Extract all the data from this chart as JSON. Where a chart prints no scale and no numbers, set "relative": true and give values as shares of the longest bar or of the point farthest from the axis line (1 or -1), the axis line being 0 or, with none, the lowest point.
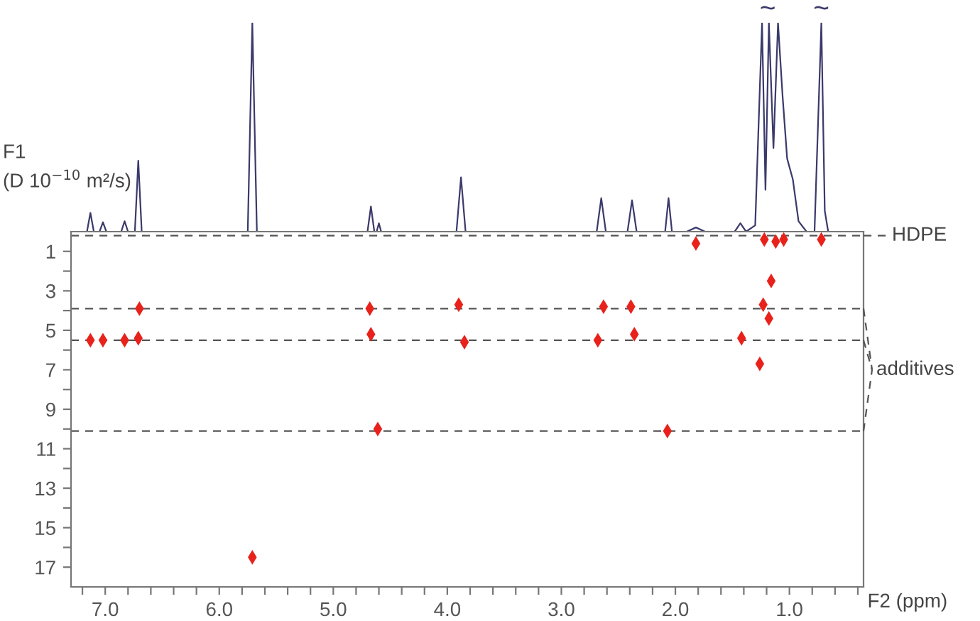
{
  "chart_data": [
    {
      "type": "line",
      "relative": true,
      "xlim": [
        7.3,
        0.35
      ],
      "grid": false,
      "series": [
        {
          "color": "#3b3a6b",
          "x": [
            7.3,
            7.16,
            7.13,
            7.1,
            7.05,
            7.02,
            6.99,
            6.86,
            6.83,
            6.8,
            6.74,
            6.71,
            6.68,
            5.75,
            5.71,
            5.67,
            4.7,
            4.67,
            4.64,
            4.62,
            4.6,
            4.58,
            3.92,
            3.88,
            3.84,
            2.69,
            2.65,
            2.61,
            2.42,
            2.38,
            2.34,
            2.09,
            2.06,
            2.03,
            1.9,
            1.82,
            1.74,
            1.48,
            1.43,
            1.38,
            1.3,
            1.24,
            1.21,
            1.18,
            1.14,
            1.1,
            1.06,
            1.02,
            0.97,
            0.92,
            0.85,
            0.78,
            0.72,
            0.69,
            0.66,
            0.6,
            0.35
          ],
          "values": [
            0.0,
            0.0,
            0.09,
            0.0,
            0.0,
            0.045,
            0.0,
            0.0,
            0.05,
            0.0,
            0.0,
            0.34,
            0.0,
            0.0,
            1.0,
            0.0,
            0.0,
            0.12,
            0.0,
            0.0,
            0.04,
            0.0,
            0.0,
            0.26,
            0.0,
            0.0,
            0.16,
            0.0,
            0.0,
            0.15,
            0.0,
            0.0,
            0.16,
            0.0,
            0.0,
            0.02,
            0.0,
            0.0,
            0.04,
            0.0,
            0.03,
            1.0,
            0.2,
            1.0,
            0.4,
            1.0,
            0.65,
            0.35,
            0.25,
            0.05,
            0.0,
            0.0,
            1.0,
            0.1,
            0.0,
            0.0,
            0.0
          ]
        }
      ],
      "annotations": [
        {
          "text": "~",
          "x": 1.19,
          "y": 1.0
        },
        {
          "text": "~",
          "x": 0.72,
          "y": 1.0
        }
      ]
    },
    {
      "type": "scatter",
      "ylabel": "F1\n(D 10$^{−10}$ m²/s)",
      "xlabel": "F2 (ppm)",
      "xlim": [
        7.3,
        0.35
      ],
      "ylim": [
        18,
        0
      ],
      "grid": false,
      "marker": "diamond",
      "xticks": [
        {
          "value": 7.2,
          "label": null
        },
        {
          "value": 7,
          "label": "7.0"
        },
        {
          "value": 6.8,
          "label": null
        },
        {
          "value": 6.6,
          "label": null
        },
        {
          "value": 6.4,
          "label": null
        },
        {
          "value": 6.2,
          "label": null
        },
        {
          "value": 6,
          "label": "6.0"
        },
        {
          "value": 5.8,
          "label": null
        },
        {
          "value": 5.6,
          "label": null
        },
        {
          "value": 5.4,
          "label": null
        },
        {
          "value": 5.2,
          "label": null
        },
        {
          "value": 5,
          "label": "5.0"
        },
        {
          "value": 4.8,
          "label": null
        },
        {
          "value": 4.6,
          "label": null
        },
        {
          "value": 4.4,
          "label": null
        },
        {
          "value": 4.2,
          "label": null
        },
        {
          "value": 4,
          "label": "4.0"
        },
        {
          "value": 3.8,
          "label": null
        },
        {
          "value": 3.6,
          "label": null
        },
        {
          "value": 3.4,
          "label": null
        },
        {
          "value": 3.2,
          "label": null
        },
        {
          "value": 3,
          "label": "3.0"
        },
        {
          "value": 2.8,
          "label": null
        },
        {
          "value": 2.6,
          "label": null
        },
        {
          "value": 2.4,
          "label": null
        },
        {
          "value": 2.2,
          "label": null
        },
        {
          "value": 2,
          "label": "2.0"
        },
        {
          "value": 1.8,
          "label": null
        },
        {
          "value": 1.6,
          "label": null
        },
        {
          "value": 1.4,
          "label": null
        },
        {
          "value": 1.2,
          "label": null
        },
        {
          "value": 1,
          "label": "1.0"
        },
        {
          "value": 0.8,
          "label": null
        },
        {
          "value": 0.6,
          "label": null
        },
        {
          "value": 0.4,
          "label": null
        }
      ],
      "yticks": [
        1,
        {
          "value": 2,
          "label": null
        },
        3,
        {
          "value": 4,
          "label": null
        },
        5,
        {
          "value": 6,
          "label": null
        },
        7,
        {
          "value": 8,
          "label": null
        },
        9,
        {
          "value": 10,
          "label": null
        },
        11,
        {
          "value": 12,
          "label": null
        },
        13,
        {
          "value": 14,
          "label": null
        },
        15,
        {
          "value": 16,
          "label": null
        },
        17
      ],
      "series": [
        {
          "color": "#e8221b",
          "x": [
            1.82,
            1.22,
            1.12,
            1.05,
            0.72,
            1.16,
            6.7,
            4.68,
            3.9,
            2.63,
            2.39,
            1.23,
            1.18,
            7.13,
            7.02,
            6.83,
            6.71,
            4.67,
            3.85,
            2.68,
            2.36,
            1.42,
            1.26,
            4.61,
            2.07,
            5.71
          ],
          "values": [
            0.6,
            0.4,
            0.5,
            0.4,
            0.4,
            2.5,
            3.9,
            3.9,
            3.7,
            3.8,
            3.8,
            3.7,
            4.4,
            5.5,
            5.5,
            5.5,
            5.4,
            5.2,
            5.6,
            5.5,
            5.2,
            5.4,
            6.7,
            10.0,
            10.1,
            16.5
          ]
        }
      ],
      "ref_lines": [
        {
          "axis": "y",
          "value": 0.2,
          "label": "HDPE",
          "color": "#555555",
          "line_style": "dashed"
        },
        {
          "axis": "y",
          "value": 3.9,
          "label": "additives",
          "color": "#555555",
          "line_style": "dashed"
        },
        {
          "axis": "y",
          "value": 5.5,
          "label": null,
          "color": "#555555",
          "line_style": "dashed"
        },
        {
          "axis": "y",
          "value": 10.1,
          "label": null,
          "color": "#555555",
          "line_style": "dashed"
        }
      ]
    }
  ]
}
